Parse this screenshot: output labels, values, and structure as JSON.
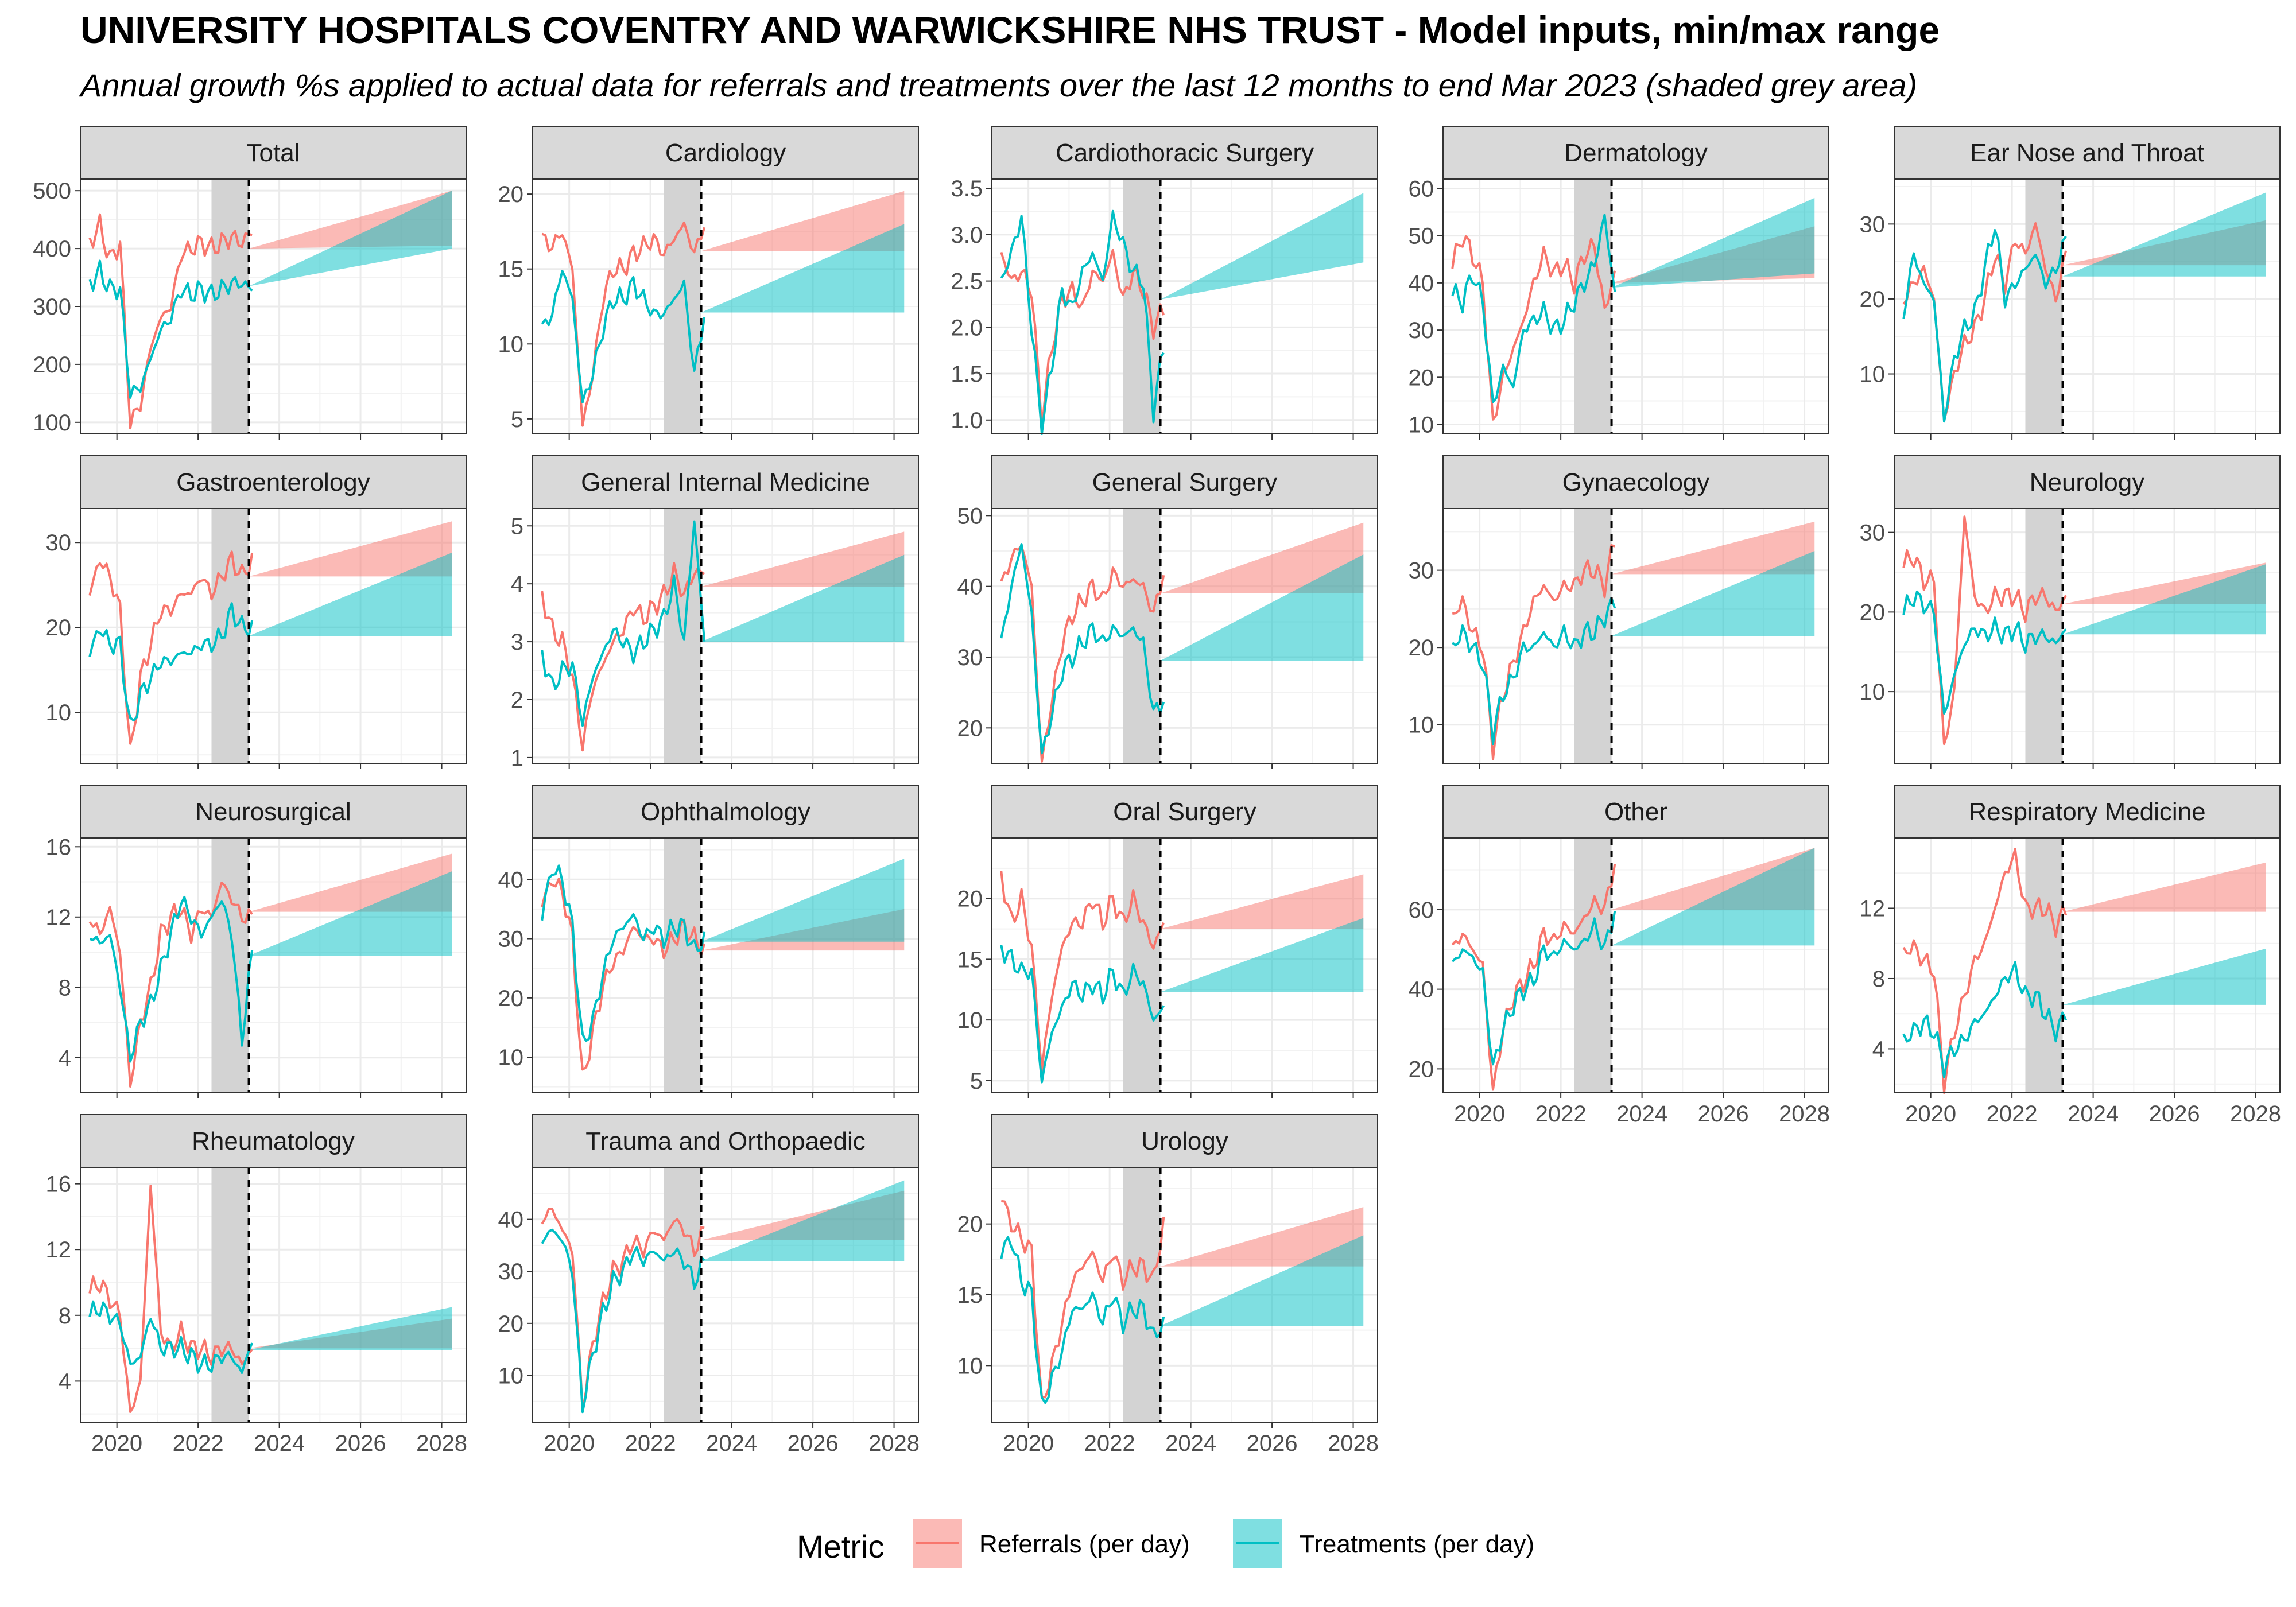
{
  "header": {
    "title": "UNIVERSITY HOSPITALS COVENTRY AND WARWICKSHIRE NHS TRUST - Model inputs, min/max range",
    "subtitle": "Annual growth %s applied to actual data for referrals and treatments over the last 12 months to end Mar 2023 (shaded grey area)"
  },
  "legend": {
    "title": "Metric",
    "entries": [
      {
        "label": "Referrals (per day)",
        "color": "#F8766D"
      },
      {
        "label": "Treatments (per day)",
        "color": "#00BFC4"
      }
    ]
  },
  "colors": {
    "referrals": "#F8766D",
    "treatments": "#00BFC4",
    "strip_fill": "#D9D9D9",
    "shade": "#D3D3D3"
  },
  "chart_data": {
    "type": "line",
    "x_range": [
      2019.1,
      2028.6
    ],
    "x_ticks": [
      "2020",
      "2022",
      "2024",
      "2026",
      "2028"
    ],
    "shade_range": [
      2022.33,
      2023.25
    ],
    "cutoff_x": 2023.25,
    "projection_end": 2028.25,
    "panels": [
      {
        "name": "Total",
        "yrange": [
          80,
          520
        ],
        "yticks": [
          "100",
          "200",
          "300",
          "400",
          "500"
        ],
        "ref": [
          410,
          440,
          380,
          410,
          100,
          130,
          230,
          280,
          300,
          390,
          400,
          410,
          400,
          410,
          420,
          410,
          430
        ],
        "trt": [
          340,
          360,
          330,
          330,
          150,
          160,
          210,
          260,
          280,
          330,
          320,
          330,
          320,
          330,
          340,
          340,
          330
        ],
        "ref_band": [
          400,
          400,
          405,
          500
        ],
        "trt_band": [
          335,
          335,
          400,
          500
        ]
      },
      {
        "name": "Cardiology",
        "yrange": [
          4,
          21
        ],
        "yticks": [
          "5",
          "10",
          "15",
          "20"
        ],
        "ref": [
          17,
          16.5,
          17.5,
          15,
          4.5,
          8,
          13,
          15,
          15,
          16,
          16.5,
          17,
          16,
          17,
          18,
          16,
          18
        ],
        "trt": [
          11,
          12,
          15,
          13,
          6,
          8,
          11,
          13,
          13,
          14,
          13,
          12,
          12,
          13,
          14,
          8,
          12
        ],
        "ref_band": [
          16.2,
          16.2,
          16.2,
          20.2
        ],
        "trt_band": [
          12.1,
          12.1,
          12.1,
          18
        ]
      },
      {
        "name": "Cardiothoracic Surgery",
        "yrange": [
          0.85,
          3.6
        ],
        "yticks": [
          "1.0",
          "1.5",
          "2.0",
          "2.5",
          "3.0",
          "3.5"
        ],
        "ref": [
          2.8,
          2.5,
          2.6,
          2.4,
          1.0,
          1.8,
          2.3,
          2.4,
          2.2,
          2.6,
          2.5,
          2.8,
          2.3,
          2.6,
          2.4,
          2.0,
          2.2
        ],
        "trt": [
          2.5,
          2.8,
          3.2,
          2.0,
          0.9,
          1.6,
          2.4,
          2.2,
          2.6,
          2.8,
          2.5,
          3.2,
          2.9,
          2.6,
          2.5,
          1.1,
          1.8
        ],
        "ref_band": [
          2.17,
          2.17,
          2.3,
          2.3
        ],
        "trt_band": [
          2.3,
          2.3,
          2.7,
          3.45
        ]
      },
      {
        "name": "Dermatology",
        "yrange": [
          8,
          62
        ],
        "yticks": [
          "10",
          "20",
          "30",
          "40",
          "50",
          "60"
        ],
        "ref": [
          44,
          50,
          46,
          40,
          10,
          20,
          26,
          32,
          40,
          46,
          42,
          44,
          40,
          46,
          48,
          34,
          42
        ],
        "trt": [
          38,
          36,
          42,
          36,
          14,
          22,
          18,
          30,
          32,
          34,
          30,
          32,
          36,
          40,
          44,
          54,
          38
        ],
        "ref_band": [
          40,
          40,
          41,
          52
        ],
        "trt_band": [
          39,
          39,
          42,
          58
        ]
      },
      {
        "name": "Ear Nose and Throat",
        "yrange": [
          2,
          36
        ],
        "yticks": [
          "10",
          "20",
          "30"
        ],
        "ref": [
          20,
          22,
          24,
          20,
          4,
          10,
          14,
          16,
          20,
          26,
          22,
          28,
          26,
          30,
          24,
          20,
          26
        ],
        "trt": [
          18,
          26,
          22,
          20,
          4,
          12,
          16,
          18,
          24,
          30,
          20,
          22,
          24,
          26,
          22,
          24,
          28
        ],
        "ref_band": [
          24.5,
          24.5,
          24.5,
          30.5
        ],
        "trt_band": [
          23,
          23,
          23,
          34.2
        ]
      },
      {
        "name": "Gastroenterology",
        "yrange": [
          4,
          34
        ],
        "yticks": [
          "10",
          "20",
          "30"
        ],
        "ref": [
          24,
          28,
          26,
          22,
          5,
          14,
          18,
          22,
          22,
          24,
          24,
          26,
          24,
          26,
          28,
          26,
          28
        ],
        "trt": [
          17,
          20,
          18,
          18,
          8,
          12,
          14,
          16,
          16,
          17,
          17,
          18,
          18,
          19,
          22,
          20,
          20
        ],
        "ref_band": [
          26,
          26,
          26,
          32.5
        ],
        "trt_band": [
          19,
          19,
          19,
          28.8
        ]
      },
      {
        "name": "General Internal Medicine",
        "yrange": [
          0.9,
          5.3
        ],
        "yticks": [
          "1",
          "2",
          "3",
          "4",
          "5"
        ],
        "ref": [
          3.8,
          3.2,
          3.0,
          2.4,
          1.2,
          2.2,
          2.6,
          3.0,
          3.2,
          3.6,
          3.4,
          3.6,
          3.8,
          4.2,
          3.8,
          4.2,
          4.2
        ],
        "trt": [
          2.8,
          2.2,
          2.5,
          2.6,
          1.6,
          2.4,
          2.8,
          3.2,
          3.0,
          2.8,
          3.0,
          3.2,
          3.4,
          4.0,
          3.0,
          5.1,
          3.0
        ],
        "ref_band": [
          3.95,
          3.95,
          3.95,
          4.9
        ],
        "trt_band": [
          3.0,
          3.0,
          3.0,
          4.5
        ]
      },
      {
        "name": "General Surgery",
        "yrange": [
          15,
          51
        ],
        "yticks": [
          "20",
          "30",
          "40",
          "50"
        ],
        "ref": [
          40,
          44,
          46,
          40,
          15,
          24,
          32,
          36,
          38,
          40,
          38,
          42,
          40,
          41,
          40,
          36,
          42
        ],
        "trt": [
          32,
          40,
          46,
          36,
          16,
          22,
          28,
          30,
          32,
          34,
          32,
          34,
          33,
          34,
          32,
          22,
          24
        ],
        "ref_band": [
          39,
          39,
          39,
          49
        ],
        "trt_band": [
          29.5,
          29.5,
          29.5,
          44.5
        ]
      },
      {
        "name": "Gynaecology",
        "yrange": [
          5,
          38
        ],
        "yticks": [
          "10",
          "20",
          "30"
        ],
        "ref": [
          24,
          26,
          22,
          20,
          7,
          14,
          18,
          22,
          26,
          28,
          26,
          28,
          28,
          30,
          30,
          28,
          34
        ],
        "trt": [
          20,
          22,
          20,
          18,
          9,
          14,
          16,
          20,
          20,
          22,
          20,
          22,
          20,
          22,
          22,
          24,
          26
        ],
        "ref_band": [
          29.5,
          29.5,
          29.5,
          36.3
        ],
        "trt_band": [
          21.5,
          21.5,
          21.5,
          32.5
        ]
      },
      {
        "name": "Neurology",
        "yrange": [
          1,
          33
        ],
        "yticks": [
          "10",
          "20",
          "30"
        ],
        "ref": [
          26,
          27,
          24,
          24,
          3,
          10,
          32,
          22,
          20,
          22,
          22,
          22,
          20,
          22,
          22,
          20,
          22
        ],
        "trt": [
          20,
          22,
          21,
          20,
          7,
          12,
          16,
          18,
          17,
          18,
          17,
          18,
          16,
          17,
          17,
          16,
          18
        ],
        "ref_band": [
          21,
          21,
          21,
          26.2
        ],
        "trt_band": [
          17.2,
          17.2,
          17.2,
          26
        ]
      },
      {
        "name": "Neurosurgical",
        "yrange": [
          2,
          16.5
        ],
        "yticks": [
          "4",
          "8",
          "12",
          "16"
        ],
        "ref": [
          12,
          11,
          12.5,
          10,
          2.5,
          6,
          8,
          11,
          12,
          12.5,
          11,
          12.5,
          12,
          14,
          13,
          12,
          12
        ],
        "trt": [
          11,
          10.5,
          11,
          8,
          4,
          6,
          7,
          9,
          11,
          13,
          12,
          11,
          12,
          13,
          11,
          5,
          10
        ],
        "ref_band": [
          12.3,
          12.3,
          12.3,
          15.6
        ],
        "trt_band": [
          9.8,
          9.8,
          9.8,
          14.6
        ]
      },
      {
        "name": "Ophthalmology",
        "yrange": [
          4,
          47
        ],
        "yticks": [
          "10",
          "20",
          "30",
          "40"
        ],
        "ref": [
          36,
          40,
          38,
          30,
          6,
          14,
          22,
          26,
          28,
          32,
          30,
          30,
          28,
          30,
          32,
          30,
          28
        ],
        "trt": [
          34,
          42,
          40,
          32,
          12,
          16,
          24,
          30,
          32,
          34,
          30,
          32,
          30,
          32,
          32,
          28,
          30
        ],
        "ref_band": [
          28,
          28,
          28,
          35
        ],
        "trt_band": [
          29.5,
          29.5,
          29.5,
          43.5
        ]
      },
      {
        "name": "Oral Surgery",
        "yrange": [
          4,
          25
        ],
        "yticks": [
          "5",
          "10",
          "15",
          "20"
        ],
        "ref": [
          22,
          18,
          20,
          16,
          6,
          12,
          16,
          18,
          18,
          20,
          18,
          20,
          18,
          20,
          18,
          16,
          18
        ],
        "trt": [
          16,
          15,
          14,
          14,
          5,
          9,
          11,
          13,
          12,
          13,
          12,
          14,
          12,
          14,
          13,
          10,
          11
        ],
        "ref_band": [
          17.5,
          17.5,
          17.5,
          22
        ],
        "trt_band": [
          12.3,
          12.3,
          12.3,
          18.4
        ]
      },
      {
        "name": "Other",
        "yrange": [
          14,
          78
        ],
        "yticks": [
          "20",
          "40",
          "60"
        ],
        "ref": [
          50,
          54,
          50,
          46,
          14,
          30,
          38,
          42,
          46,
          54,
          52,
          56,
          54,
          58,
          62,
          60,
          72
        ],
        "trt": [
          46,
          50,
          48,
          44,
          20,
          30,
          36,
          40,
          42,
          50,
          48,
          52,
          50,
          52,
          56,
          50,
          60
        ],
        "ref_band": [
          60,
          60,
          60,
          75.5
        ],
        "trt_band": [
          51,
          51,
          51,
          75.5
        ]
      },
      {
        "name": "Respiratory Medicine",
        "yrange": [
          1.5,
          16
        ],
        "yticks": [
          "4",
          "8",
          "12"
        ],
        "ref": [
          9.5,
          9.8,
          9,
          8.5,
          2,
          5,
          7,
          9,
          10,
          12,
          14,
          15,
          12,
          12,
          12,
          11,
          12
        ],
        "trt": [
          4.5,
          5,
          5.5,
          5,
          3,
          4,
          4.5,
          5.5,
          6,
          7,
          8,
          8.5,
          7,
          7,
          6,
          5,
          6
        ],
        "ref_band": [
          11.8,
          11.8,
          11.8,
          14.6
        ],
        "trt_band": [
          6.5,
          6.5,
          6.5,
          9.7
        ]
      },
      {
        "name": "Rheumatology",
        "yrange": [
          1.5,
          17
        ],
        "yticks": [
          "4",
          "8",
          "12",
          "16"
        ],
        "ref": [
          9.5,
          10,
          9,
          8,
          2,
          4,
          16,
          7,
          6,
          7,
          6,
          6,
          5.5,
          6,
          6,
          5,
          6
        ],
        "trt": [
          8,
          8.5,
          8,
          7.5,
          5,
          5.5,
          8,
          6,
          6,
          6,
          5.5,
          5,
          5,
          5.5,
          5.5,
          4.5,
          6.5
        ],
        "ref_band": [
          6,
          6,
          6,
          7.8
        ],
        "trt_band": [
          5.9,
          5.9,
          5.9,
          8.5
        ]
      },
      {
        "name": "Trauma and Orthopaedic",
        "yrange": [
          1,
          50
        ],
        "yticks": [
          "10",
          "20",
          "30",
          "40"
        ],
        "ref": [
          40,
          42,
          38,
          34,
          4,
          16,
          24,
          30,
          32,
          36,
          34,
          38,
          36,
          40,
          38,
          34,
          38
        ],
        "trt": [
          36,
          38,
          36,
          30,
          4,
          14,
          22,
          28,
          30,
          34,
          32,
          34,
          32,
          34,
          32,
          28,
          32
        ],
        "ref_band": [
          36,
          36,
          36,
          45.5
        ],
        "trt_band": [
          32,
          32,
          32,
          47.5
        ]
      },
      {
        "name": "Urology",
        "yrange": [
          6,
          24
        ],
        "yticks": [
          "10",
          "15",
          "20"
        ],
        "ref": [
          22,
          20,
          19,
          18,
          7,
          10,
          13,
          16,
          17,
          18,
          16,
          18,
          16,
          17,
          17,
          16,
          20
        ],
        "trt": [
          18,
          19,
          16,
          15,
          7,
          9,
          11,
          14,
          14,
          15,
          13,
          15,
          13,
          14,
          14,
          12,
          13
        ],
        "ref_band": [
          17,
          17,
          17,
          21.2
        ],
        "trt_band": [
          12.8,
          12.8,
          12.8,
          19.2
        ]
      }
    ]
  }
}
